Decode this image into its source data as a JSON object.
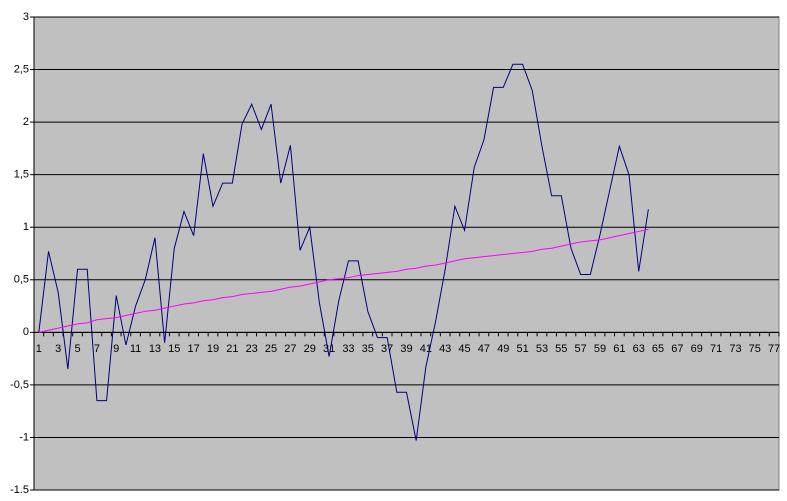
{
  "chart_data": {
    "type": "line",
    "categories": [
      1,
      null,
      3,
      null,
      5,
      null,
      7,
      null,
      9,
      null,
      11,
      null,
      13,
      null,
      15,
      null,
      17,
      null,
      19,
      null,
      21,
      null,
      23,
      null,
      25,
      null,
      27,
      null,
      29,
      null,
      31,
      null,
      33,
      null,
      35,
      null,
      37,
      null,
      39,
      null,
      41,
      null,
      43,
      null,
      45,
      null,
      47,
      null,
      49,
      null,
      51,
      null,
      53,
      null,
      55,
      null,
      57,
      null,
      59,
      null,
      61,
      null,
      63,
      null,
      65,
      null,
      67,
      null,
      69,
      null,
      71,
      null,
      73,
      null,
      75,
      null,
      77
    ],
    "series": [
      {
        "color": "#000080",
        "values": [
          0,
          0.77,
          0.38,
          -0.35,
          0.6,
          0.6,
          -0.65,
          -0.65,
          0.35,
          -0.12,
          0.25,
          0.5,
          0.9,
          -0.1,
          0.8,
          1.15,
          0.92,
          1.7,
          1.2,
          1.42,
          1.42,
          1.98,
          2.17,
          1.93,
          2.17,
          1.42,
          1.78,
          0.78,
          1.0,
          0.28,
          -0.23,
          0.3,
          0.68,
          0.68,
          0.2,
          -0.05,
          -0.05,
          -0.57,
          -0.57,
          -1.03,
          -0.33,
          0.1,
          0.6,
          1.2,
          0.97,
          1.57,
          1.83,
          2.33,
          2.33,
          2.55,
          2.55,
          2.3,
          1.77,
          1.3,
          1.3,
          0.8,
          0.55,
          0.55,
          0.93,
          1.35,
          1.77,
          1.5,
          0.58,
          1.17,
          null,
          null,
          null,
          null,
          null,
          null,
          null,
          null,
          null,
          null,
          null,
          null,
          null
        ]
      },
      {
        "color": "#ff00ff",
        "values": [
          0,
          0.02,
          0.04,
          0.06,
          0.08,
          0.09,
          0.12,
          0.13,
          0.14,
          0.16,
          0.18,
          0.2,
          0.21,
          0.23,
          0.25,
          0.27,
          0.28,
          0.3,
          0.31,
          0.33,
          0.34,
          0.36,
          0.37,
          0.38,
          0.39,
          0.41,
          0.43,
          0.44,
          0.46,
          0.48,
          0.5,
          0.51,
          0.52,
          0.54,
          0.55,
          0.56,
          0.57,
          0.58,
          0.6,
          0.61,
          0.63,
          0.64,
          0.66,
          0.68,
          0.7,
          0.71,
          0.72,
          0.73,
          0.74,
          0.75,
          0.76,
          0.77,
          0.79,
          0.8,
          0.82,
          0.84,
          0.86,
          0.87,
          0.88,
          0.9,
          0.92,
          0.94,
          0.96,
          0.98,
          null,
          null,
          null,
          null,
          null,
          null,
          null,
          null,
          null,
          null,
          null,
          null,
          null
        ]
      }
    ],
    "ylim": [
      -1.5,
      3
    ],
    "yticks": [
      -1.5,
      -1,
      {
        "value": -0.5,
        "label": "-0,5"
      },
      0,
      {
        "value": 0.5,
        "label": "0,5"
      },
      1,
      {
        "value": 1.5,
        "label": "1,5"
      },
      2,
      {
        "value": 2.5,
        "label": "2,5"
      },
      3
    ],
    "grid": true,
    "background": "#c0c0c0"
  }
}
